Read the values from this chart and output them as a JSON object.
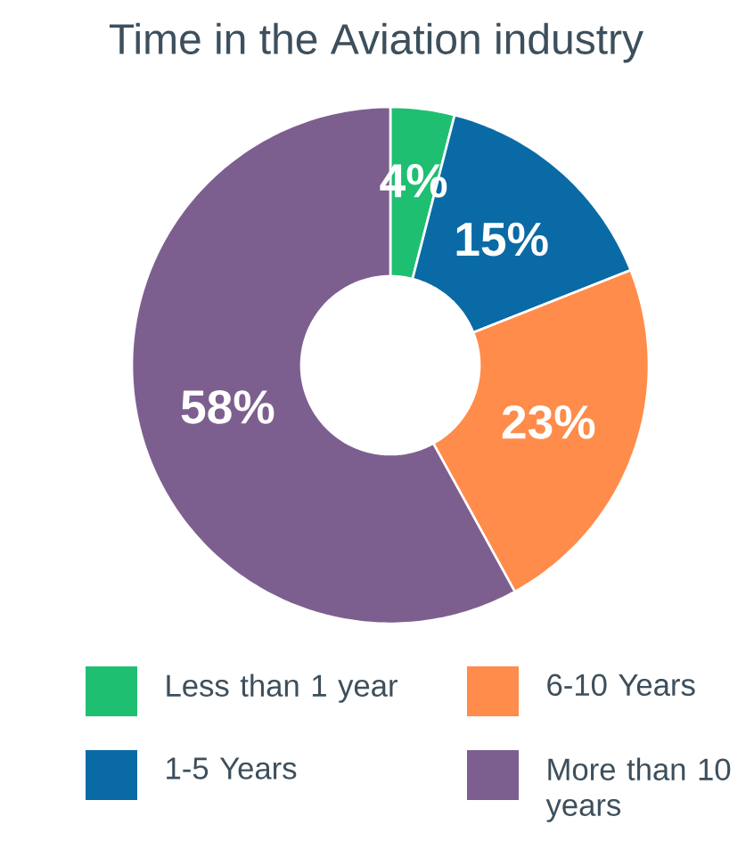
{
  "chart_data": {
    "type": "donut",
    "title": "Time in the Aviation industry",
    "categories": [
      "Less than 1 year",
      "1-5 Years",
      "6-10 Years",
      "More than 10 years"
    ],
    "values": [
      4,
      15,
      23,
      58
    ],
    "colors": [
      "#1fbf72",
      "#0a6aa6",
      "#ff8c4a",
      "#7d5f8f"
    ],
    "value_labels": [
      "4%",
      "15%",
      "23%",
      "58%"
    ],
    "legend": "bottom"
  }
}
